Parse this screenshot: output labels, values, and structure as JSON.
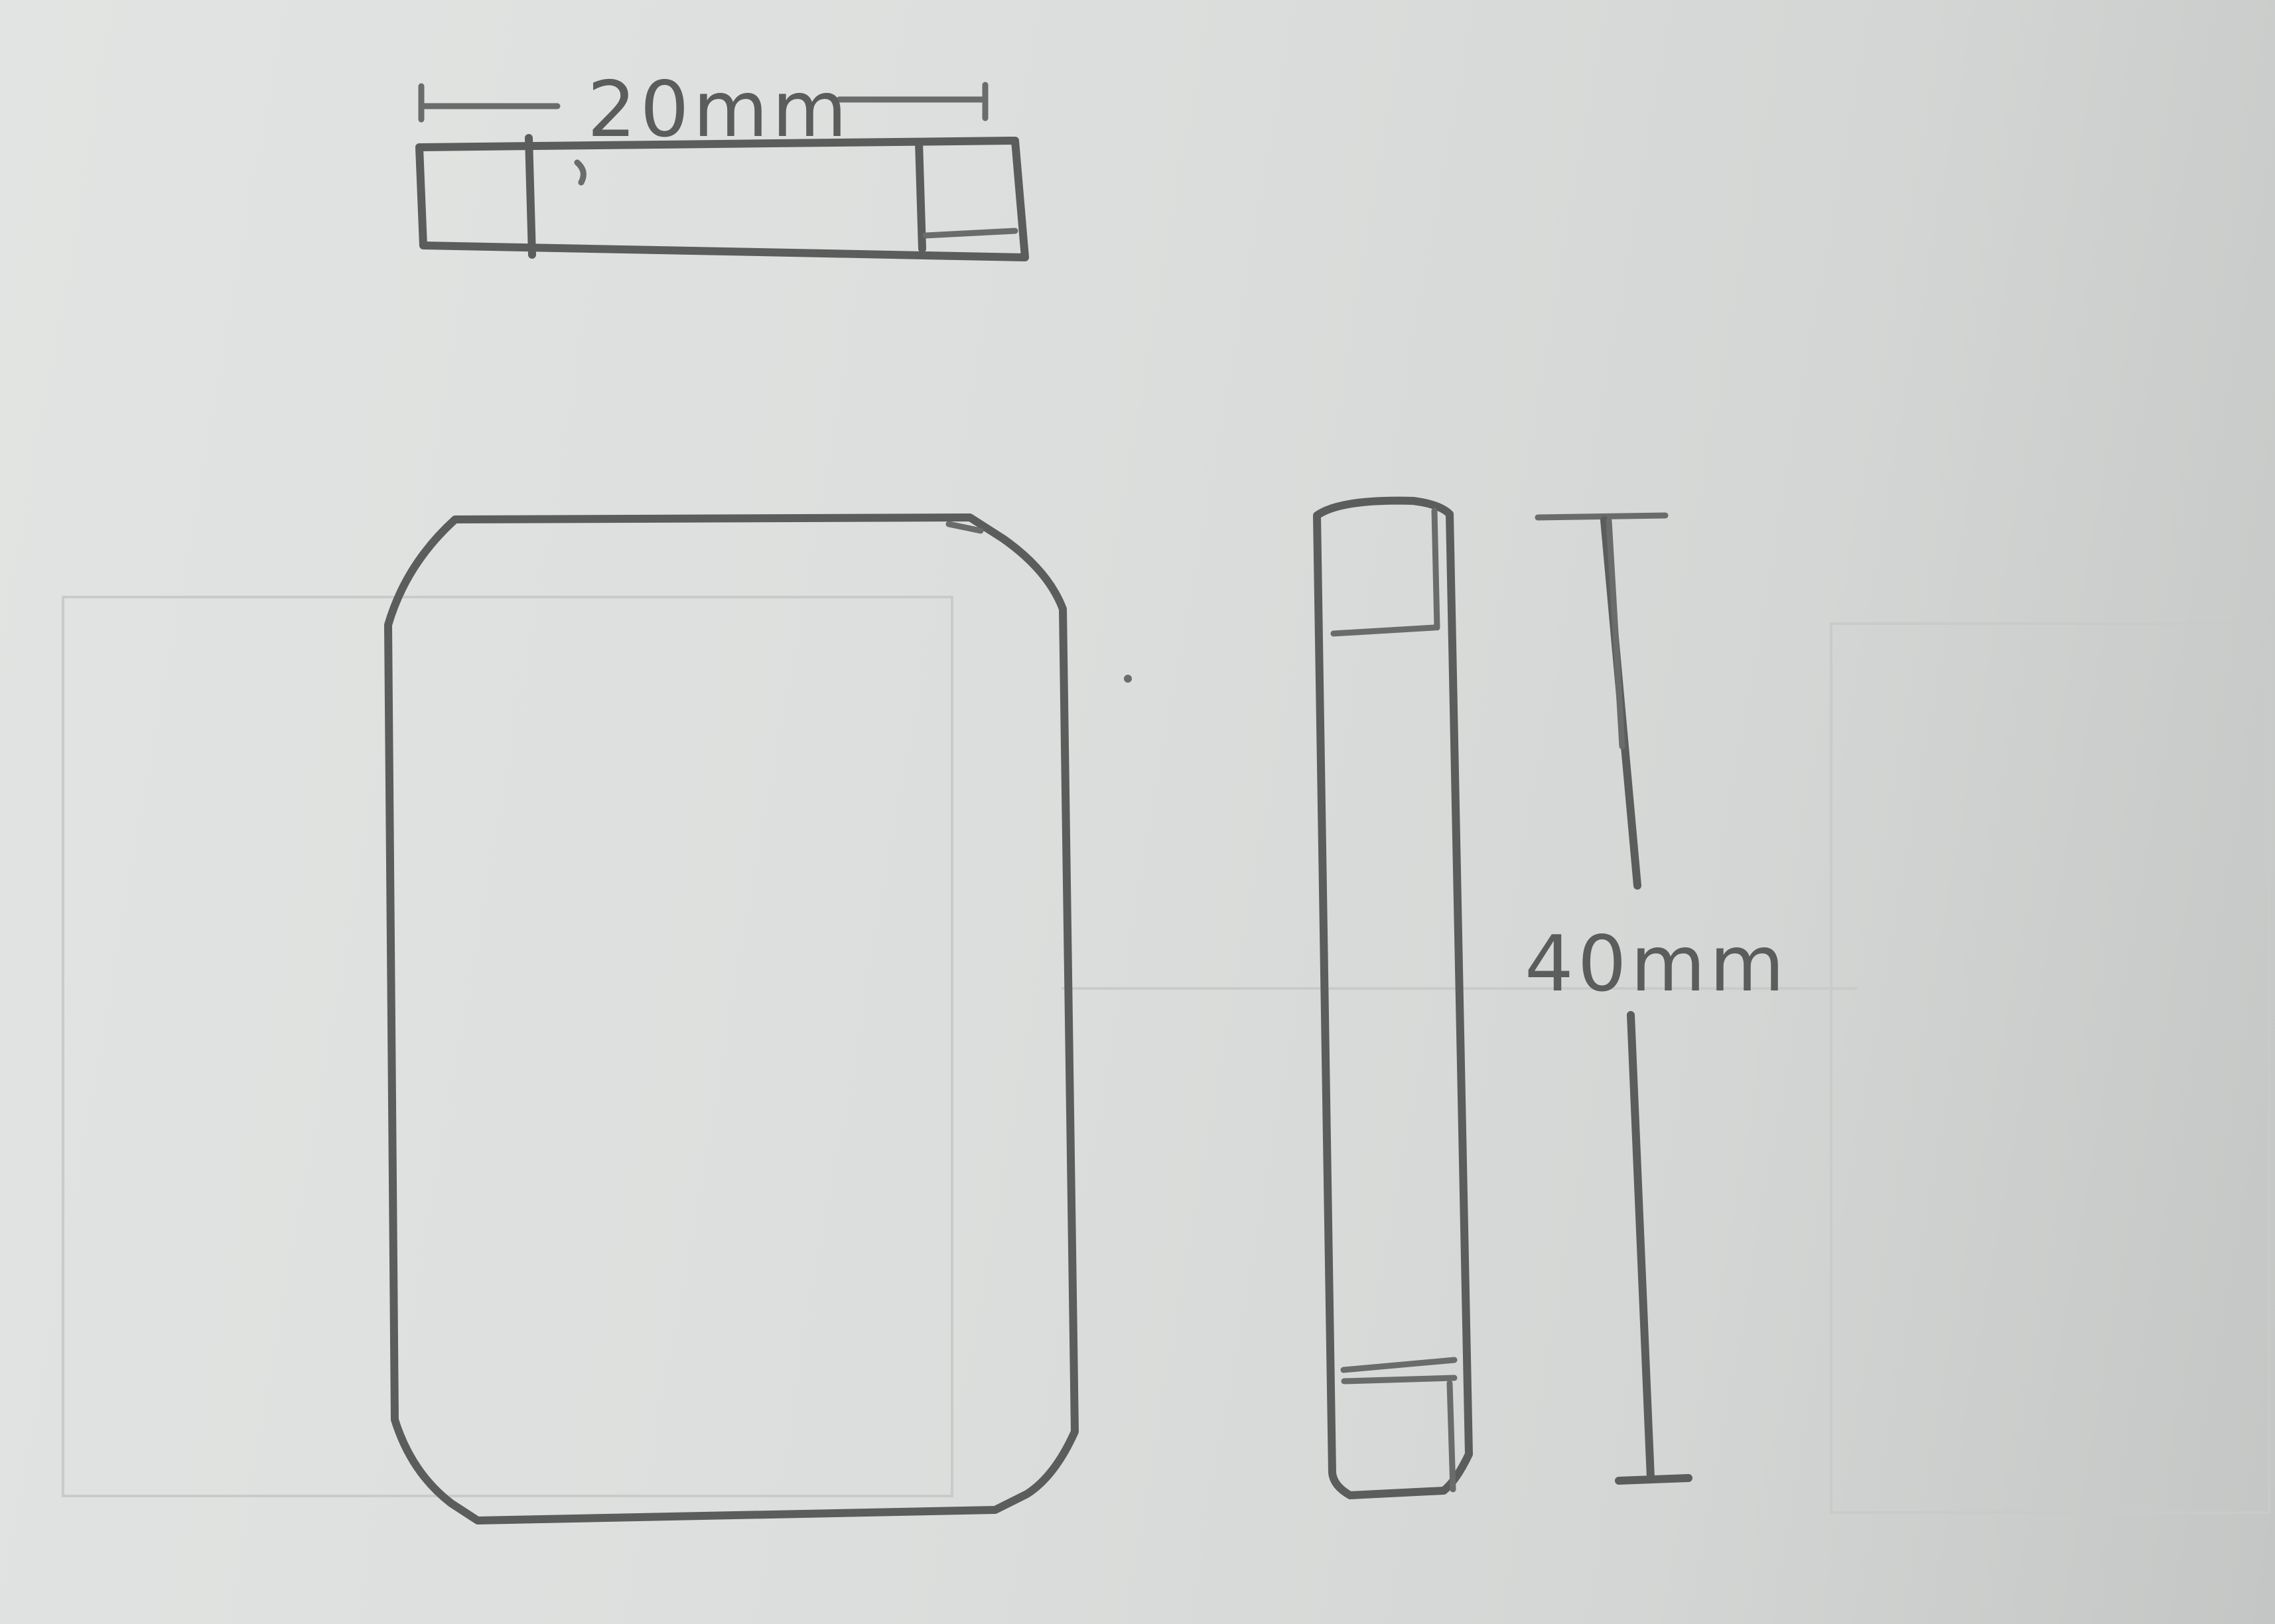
{
  "dimensions": {
    "width_label": "20mm",
    "height_label": "40mm"
  }
}
